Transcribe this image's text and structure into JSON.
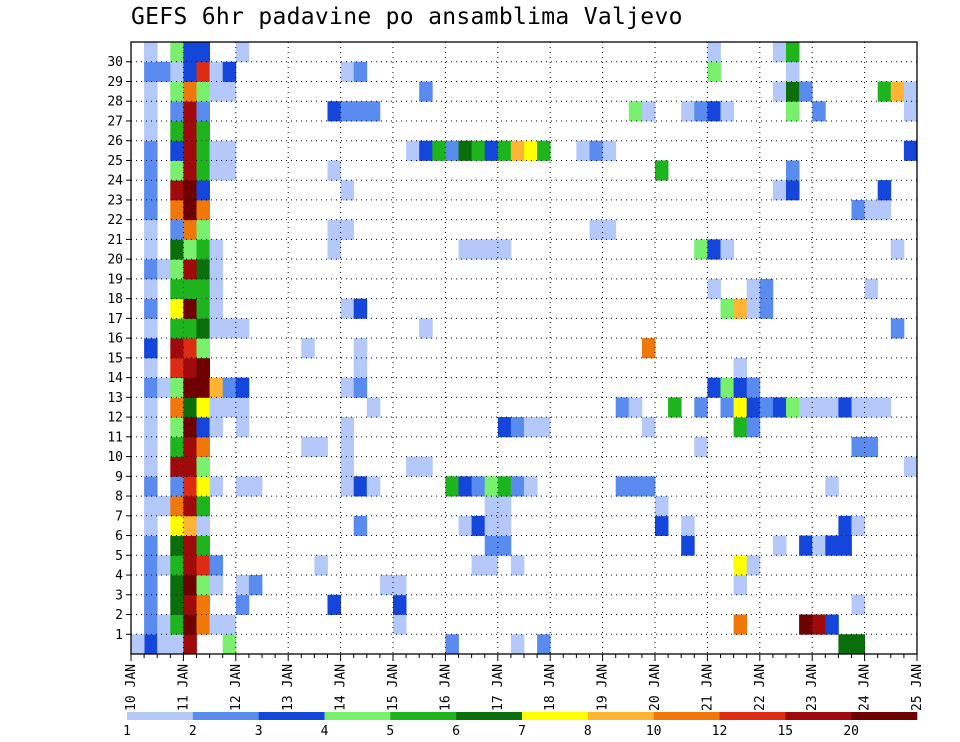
{
  "chart_data": {
    "type": "heatmap",
    "title": "GEFS 6hr padavine po ansamblima Valjevo",
    "xlabel": "",
    "ylabel": "",
    "x_tick_labels": [
      "10 JAN",
      "11 JAN",
      "12 JAN",
      "13 JAN",
      "14 JAN",
      "15 JAN",
      "16 JAN",
      "17 JAN",
      "18 JAN",
      "19 JAN",
      "20 JAN",
      "21 JAN",
      "22 JAN",
      "23 JAN",
      "24 JAN",
      "25 JAN"
    ],
    "y_tick_labels": [
      "1",
      "2",
      "3",
      "4",
      "5",
      "6",
      "7",
      "8",
      "9",
      "10",
      "11",
      "12",
      "13",
      "14",
      "15",
      "16",
      "17",
      "18",
      "19",
      "20",
      "21",
      "22",
      "23",
      "24",
      "25",
      "26",
      "27",
      "28",
      "29",
      "30"
    ],
    "x_unit": "6-hour steps from 10 JAN 00Z",
    "n_steps": 60,
    "n_members": 31,
    "grid": true,
    "legend": {
      "placement": "bottom",
      "labels": [
        "1",
        "2",
        "3",
        "4",
        "5",
        "6",
        "7",
        "8",
        "10",
        "12",
        "15",
        "20"
      ],
      "colors": [
        "#b4c8fa",
        "#5a8cf0",
        "#1446dc",
        "#78f06e",
        "#1eb41e",
        "#0a6e0a",
        "#ffff00",
        "#ffb432",
        "#f0780a",
        "#dc2d14",
        "#a00a0a",
        "#6e0000"
      ]
    },
    "cells": [
      [
        1,
        0,
        3
      ],
      [
        2,
        0,
        1
      ],
      [
        3,
        0,
        1
      ],
      [
        4,
        0,
        11
      ],
      [
        7,
        0,
        4
      ],
      [
        24,
        0,
        2
      ],
      [
        29,
        0,
        1
      ],
      [
        31,
        0,
        2
      ],
      [
        54,
        0,
        6
      ],
      [
        55,
        0,
        6
      ],
      [
        0,
        0,
        1
      ],
      [
        1,
        1,
        2
      ],
      [
        2,
        1,
        1
      ],
      [
        3,
        1,
        5
      ],
      [
        4,
        1,
        12
      ],
      [
        5,
        1,
        9
      ],
      [
        6,
        1,
        1
      ],
      [
        7,
        1,
        1
      ],
      [
        20,
        1,
        1
      ],
      [
        46,
        1,
        9
      ],
      [
        51,
        1,
        12
      ],
      [
        52,
        1,
        11
      ],
      [
        53,
        1,
        3
      ],
      [
        1,
        2,
        2
      ],
      [
        3,
        2,
        6
      ],
      [
        4,
        2,
        11
      ],
      [
        5,
        2,
        9
      ],
      [
        8,
        2,
        2
      ],
      [
        15,
        2,
        3
      ],
      [
        20,
        2,
        3
      ],
      [
        55,
        2,
        1
      ],
      [
        1,
        3,
        2
      ],
      [
        3,
        3,
        6
      ],
      [
        4,
        3,
        12
      ],
      [
        5,
        3,
        4
      ],
      [
        6,
        3,
        1
      ],
      [
        8,
        3,
        1
      ],
      [
        9,
        3,
        2
      ],
      [
        19,
        3,
        1
      ],
      [
        20,
        3,
        1
      ],
      [
        46,
        3,
        1
      ],
      [
        1,
        4,
        2
      ],
      [
        2,
        4,
        1
      ],
      [
        3,
        4,
        5
      ],
      [
        4,
        4,
        11
      ],
      [
        5,
        4,
        10
      ],
      [
        6,
        4,
        2
      ],
      [
        14,
        4,
        1
      ],
      [
        26,
        4,
        1
      ],
      [
        27,
        4,
        1
      ],
      [
        29,
        4,
        1
      ],
      [
        46,
        4,
        7
      ],
      [
        47,
        4,
        1
      ],
      [
        1,
        5,
        2
      ],
      [
        3,
        5,
        6
      ],
      [
        4,
        5,
        11
      ],
      [
        5,
        5,
        5
      ],
      [
        27,
        5,
        2
      ],
      [
        28,
        5,
        2
      ],
      [
        42,
        5,
        3
      ],
      [
        49,
        5,
        1
      ],
      [
        51,
        5,
        3
      ],
      [
        52,
        5,
        1
      ],
      [
        53,
        5,
        3
      ],
      [
        54,
        5,
        3
      ],
      [
        1,
        6,
        1
      ],
      [
        3,
        6,
        7
      ],
      [
        4,
        6,
        8
      ],
      [
        5,
        6,
        1
      ],
      [
        17,
        6,
        2
      ],
      [
        25,
        6,
        1
      ],
      [
        26,
        6,
        3
      ],
      [
        27,
        6,
        1
      ],
      [
        28,
        6,
        1
      ],
      [
        40,
        6,
        3
      ],
      [
        42,
        6,
        1
      ],
      [
        54,
        6,
        3
      ],
      [
        55,
        6,
        1
      ],
      [
        1,
        7,
        1
      ],
      [
        2,
        7,
        1
      ],
      [
        3,
        7,
        9
      ],
      [
        4,
        7,
        11
      ],
      [
        5,
        7,
        5
      ],
      [
        27,
        7,
        1
      ],
      [
        28,
        7,
        1
      ],
      [
        40,
        7,
        1
      ],
      [
        1,
        8,
        2
      ],
      [
        3,
        8,
        2
      ],
      [
        4,
        8,
        10
      ],
      [
        5,
        8,
        7
      ],
      [
        6,
        8,
        1
      ],
      [
        8,
        8,
        1
      ],
      [
        9,
        8,
        1
      ],
      [
        16,
        8,
        1
      ],
      [
        17,
        8,
        3
      ],
      [
        18,
        8,
        1
      ],
      [
        24,
        8,
        5
      ],
      [
        25,
        8,
        3
      ],
      [
        26,
        8,
        2
      ],
      [
        27,
        8,
        4
      ],
      [
        28,
        8,
        5
      ],
      [
        29,
        8,
        2
      ],
      [
        30,
        8,
        1
      ],
      [
        37,
        8,
        2
      ],
      [
        38,
        8,
        2
      ],
      [
        39,
        8,
        2
      ],
      [
        53,
        8,
        1
      ],
      [
        1,
        9,
        1
      ],
      [
        3,
        9,
        11
      ],
      [
        4,
        9,
        11
      ],
      [
        5,
        9,
        4
      ],
      [
        16,
        9,
        1
      ],
      [
        21,
        9,
        1
      ],
      [
        22,
        9,
        1
      ],
      [
        59,
        9,
        1
      ],
      [
        1,
        10,
        1
      ],
      [
        3,
        10,
        5
      ],
      [
        4,
        10,
        11
      ],
      [
        5,
        10,
        9
      ],
      [
        13,
        10,
        1
      ],
      [
        14,
        10,
        1
      ],
      [
        16,
        10,
        1
      ],
      [
        43,
        10,
        1
      ],
      [
        55,
        10,
        2
      ],
      [
        56,
        10,
        2
      ],
      [
        1,
        11,
        1
      ],
      [
        3,
        11,
        4
      ],
      [
        4,
        11,
        12
      ],
      [
        5,
        11,
        3
      ],
      [
        6,
        11,
        1
      ],
      [
        8,
        11,
        1
      ],
      [
        16,
        11,
        1
      ],
      [
        28,
        11,
        3
      ],
      [
        29,
        11,
        2
      ],
      [
        30,
        11,
        1
      ],
      [
        31,
        11,
        1
      ],
      [
        39,
        11,
        1
      ],
      [
        46,
        11,
        5
      ],
      [
        47,
        11,
        2
      ],
      [
        1,
        12,
        1
      ],
      [
        3,
        12,
        9
      ],
      [
        4,
        12,
        6
      ],
      [
        5,
        12,
        7
      ],
      [
        6,
        12,
        1
      ],
      [
        7,
        12,
        1
      ],
      [
        8,
        12,
        1
      ],
      [
        18,
        12,
        1
      ],
      [
        37,
        12,
        2
      ],
      [
        38,
        12,
        1
      ],
      [
        41,
        12,
        5
      ],
      [
        43,
        12,
        2
      ],
      [
        45,
        12,
        2
      ],
      [
        46,
        12,
        7
      ],
      [
        47,
        12,
        3
      ],
      [
        48,
        12,
        2
      ],
      [
        49,
        12,
        3
      ],
      [
        50,
        12,
        4
      ],
      [
        51,
        12,
        1
      ],
      [
        52,
        12,
        1
      ],
      [
        53,
        12,
        1
      ],
      [
        54,
        12,
        3
      ],
      [
        55,
        12,
        1
      ],
      [
        56,
        12,
        1
      ],
      [
        57,
        12,
        1
      ],
      [
        1,
        13,
        2
      ],
      [
        2,
        13,
        1
      ],
      [
        3,
        13,
        4
      ],
      [
        4,
        13,
        12
      ],
      [
        5,
        13,
        12
      ],
      [
        6,
        13,
        8
      ],
      [
        7,
        13,
        2
      ],
      [
        8,
        13,
        3
      ],
      [
        16,
        13,
        1
      ],
      [
        17,
        13,
        2
      ],
      [
        44,
        13,
        3
      ],
      [
        45,
        13,
        4
      ],
      [
        46,
        13,
        3
      ],
      [
        47,
        13,
        2
      ],
      [
        1,
        14,
        1
      ],
      [
        3,
        14,
        10
      ],
      [
        4,
        14,
        11
      ],
      [
        5,
        14,
        12
      ],
      [
        17,
        14,
        1
      ],
      [
        46,
        14,
        1
      ],
      [
        1,
        15,
        3
      ],
      [
        3,
        15,
        11
      ],
      [
        4,
        15,
        10
      ],
      [
        5,
        15,
        4
      ],
      [
        13,
        15,
        1
      ],
      [
        17,
        15,
        1
      ],
      [
        39,
        15,
        9
      ],
      [
        1,
        16,
        1
      ],
      [
        3,
        16,
        5
      ],
      [
        4,
        16,
        5
      ],
      [
        5,
        16,
        6
      ],
      [
        6,
        16,
        1
      ],
      [
        7,
        16,
        1
      ],
      [
        8,
        16,
        1
      ],
      [
        22,
        16,
        1
      ],
      [
        58,
        16,
        2
      ],
      [
        1,
        17,
        2
      ],
      [
        3,
        17,
        7
      ],
      [
        4,
        17,
        12
      ],
      [
        5,
        17,
        5
      ],
      [
        6,
        17,
        1
      ],
      [
        16,
        17,
        1
      ],
      [
        17,
        17,
        3
      ],
      [
        45,
        17,
        4
      ],
      [
        46,
        17,
        8
      ],
      [
        47,
        17,
        1
      ],
      [
        48,
        17,
        2
      ],
      [
        1,
        18,
        1
      ],
      [
        3,
        18,
        5
      ],
      [
        4,
        18,
        5
      ],
      [
        5,
        18,
        5
      ],
      [
        6,
        18,
        1
      ],
      [
        44,
        18,
        1
      ],
      [
        47,
        18,
        1
      ],
      [
        48,
        18,
        2
      ],
      [
        56,
        18,
        1
      ],
      [
        1,
        19,
        2
      ],
      [
        2,
        19,
        1
      ],
      [
        3,
        19,
        4
      ],
      [
        4,
        19,
        11
      ],
      [
        5,
        19,
        6
      ],
      [
        6,
        19,
        1
      ],
      [
        1,
        20,
        1
      ],
      [
        3,
        20,
        6
      ],
      [
        4,
        20,
        4
      ],
      [
        5,
        20,
        5
      ],
      [
        6,
        20,
        1
      ],
      [
        15,
        20,
        1
      ],
      [
        25,
        20,
        1
      ],
      [
        26,
        20,
        1
      ],
      [
        27,
        20,
        1
      ],
      [
        28,
        20,
        1
      ],
      [
        43,
        20,
        4
      ],
      [
        44,
        20,
        3
      ],
      [
        45,
        20,
        1
      ],
      [
        58,
        20,
        1
      ],
      [
        1,
        21,
        1
      ],
      [
        3,
        21,
        2
      ],
      [
        4,
        21,
        9
      ],
      [
        5,
        21,
        4
      ],
      [
        15,
        21,
        1
      ],
      [
        16,
        21,
        1
      ],
      [
        35,
        21,
        1
      ],
      [
        36,
        21,
        1
      ],
      [
        1,
        22,
        2
      ],
      [
        3,
        22,
        9
      ],
      [
        4,
        22,
        12
      ],
      [
        5,
        22,
        9
      ],
      [
        55,
        22,
        2
      ],
      [
        56,
        22,
        1
      ],
      [
        57,
        22,
        1
      ],
      [
        1,
        23,
        2
      ],
      [
        3,
        23,
        11
      ],
      [
        4,
        23,
        12
      ],
      [
        5,
        23,
        3
      ],
      [
        16,
        23,
        1
      ],
      [
        49,
        23,
        1
      ],
      [
        50,
        23,
        3
      ],
      [
        57,
        23,
        3
      ],
      [
        1,
        24,
        2
      ],
      [
        3,
        24,
        4
      ],
      [
        4,
        24,
        11
      ],
      [
        5,
        24,
        5
      ],
      [
        6,
        24,
        1
      ],
      [
        7,
        24,
        1
      ],
      [
        15,
        24,
        1
      ],
      [
        40,
        24,
        5
      ],
      [
        50,
        24,
        2
      ],
      [
        1,
        25,
        2
      ],
      [
        3,
        25,
        3
      ],
      [
        4,
        25,
        11
      ],
      [
        5,
        25,
        5
      ],
      [
        6,
        25,
        1
      ],
      [
        7,
        25,
        1
      ],
      [
        21,
        25,
        1
      ],
      [
        22,
        25,
        3
      ],
      [
        23,
        25,
        5
      ],
      [
        24,
        25,
        2
      ],
      [
        25,
        25,
        6
      ],
      [
        26,
        25,
        5
      ],
      [
        27,
        25,
        3
      ],
      [
        28,
        25,
        5
      ],
      [
        29,
        25,
        8
      ],
      [
        30,
        25,
        7
      ],
      [
        31,
        25,
        5
      ],
      [
        34,
        25,
        1
      ],
      [
        35,
        25,
        2
      ],
      [
        36,
        25,
        1
      ],
      [
        59,
        25,
        3
      ],
      [
        1,
        26,
        1
      ],
      [
        3,
        26,
        5
      ],
      [
        4,
        26,
        11
      ],
      [
        5,
        26,
        5
      ],
      [
        1,
        27,
        1
      ],
      [
        3,
        27,
        2
      ],
      [
        4,
        27,
        11
      ],
      [
        5,
        27,
        2
      ],
      [
        15,
        27,
        3
      ],
      [
        16,
        27,
        2
      ],
      [
        17,
        27,
        2
      ],
      [
        18,
        27,
        2
      ],
      [
        38,
        27,
        4
      ],
      [
        39,
        27,
        1
      ],
      [
        42,
        27,
        1
      ],
      [
        43,
        27,
        2
      ],
      [
        44,
        27,
        3
      ],
      [
        45,
        27,
        1
      ],
      [
        50,
        27,
        4
      ],
      [
        52,
        27,
        2
      ],
      [
        59,
        27,
        1
      ],
      [
        1,
        28,
        1
      ],
      [
        3,
        28,
        4
      ],
      [
        4,
        28,
        9
      ],
      [
        5,
        28,
        4
      ],
      [
        6,
        28,
        1
      ],
      [
        7,
        28,
        1
      ],
      [
        22,
        28,
        2
      ],
      [
        49,
        28,
        1
      ],
      [
        50,
        28,
        6
      ],
      [
        51,
        28,
        2
      ],
      [
        57,
        28,
        5
      ],
      [
        58,
        28,
        8
      ],
      [
        59,
        28,
        1
      ],
      [
        1,
        29,
        2
      ],
      [
        2,
        29,
        2
      ],
      [
        3,
        29,
        1
      ],
      [
        4,
        29,
        3
      ],
      [
        5,
        29,
        10
      ],
      [
        6,
        29,
        1
      ],
      [
        7,
        29,
        3
      ],
      [
        16,
        29,
        1
      ],
      [
        17,
        29,
        2
      ],
      [
        44,
        29,
        4
      ],
      [
        50,
        29,
        1
      ],
      [
        1,
        30,
        1
      ],
      [
        3,
        30,
        4
      ],
      [
        4,
        30,
        3
      ],
      [
        5,
        30,
        3
      ],
      [
        8,
        30,
        1
      ],
      [
        44,
        30,
        1
      ],
      [
        49,
        30,
        1
      ],
      [
        50,
        30,
        5
      ]
    ]
  }
}
